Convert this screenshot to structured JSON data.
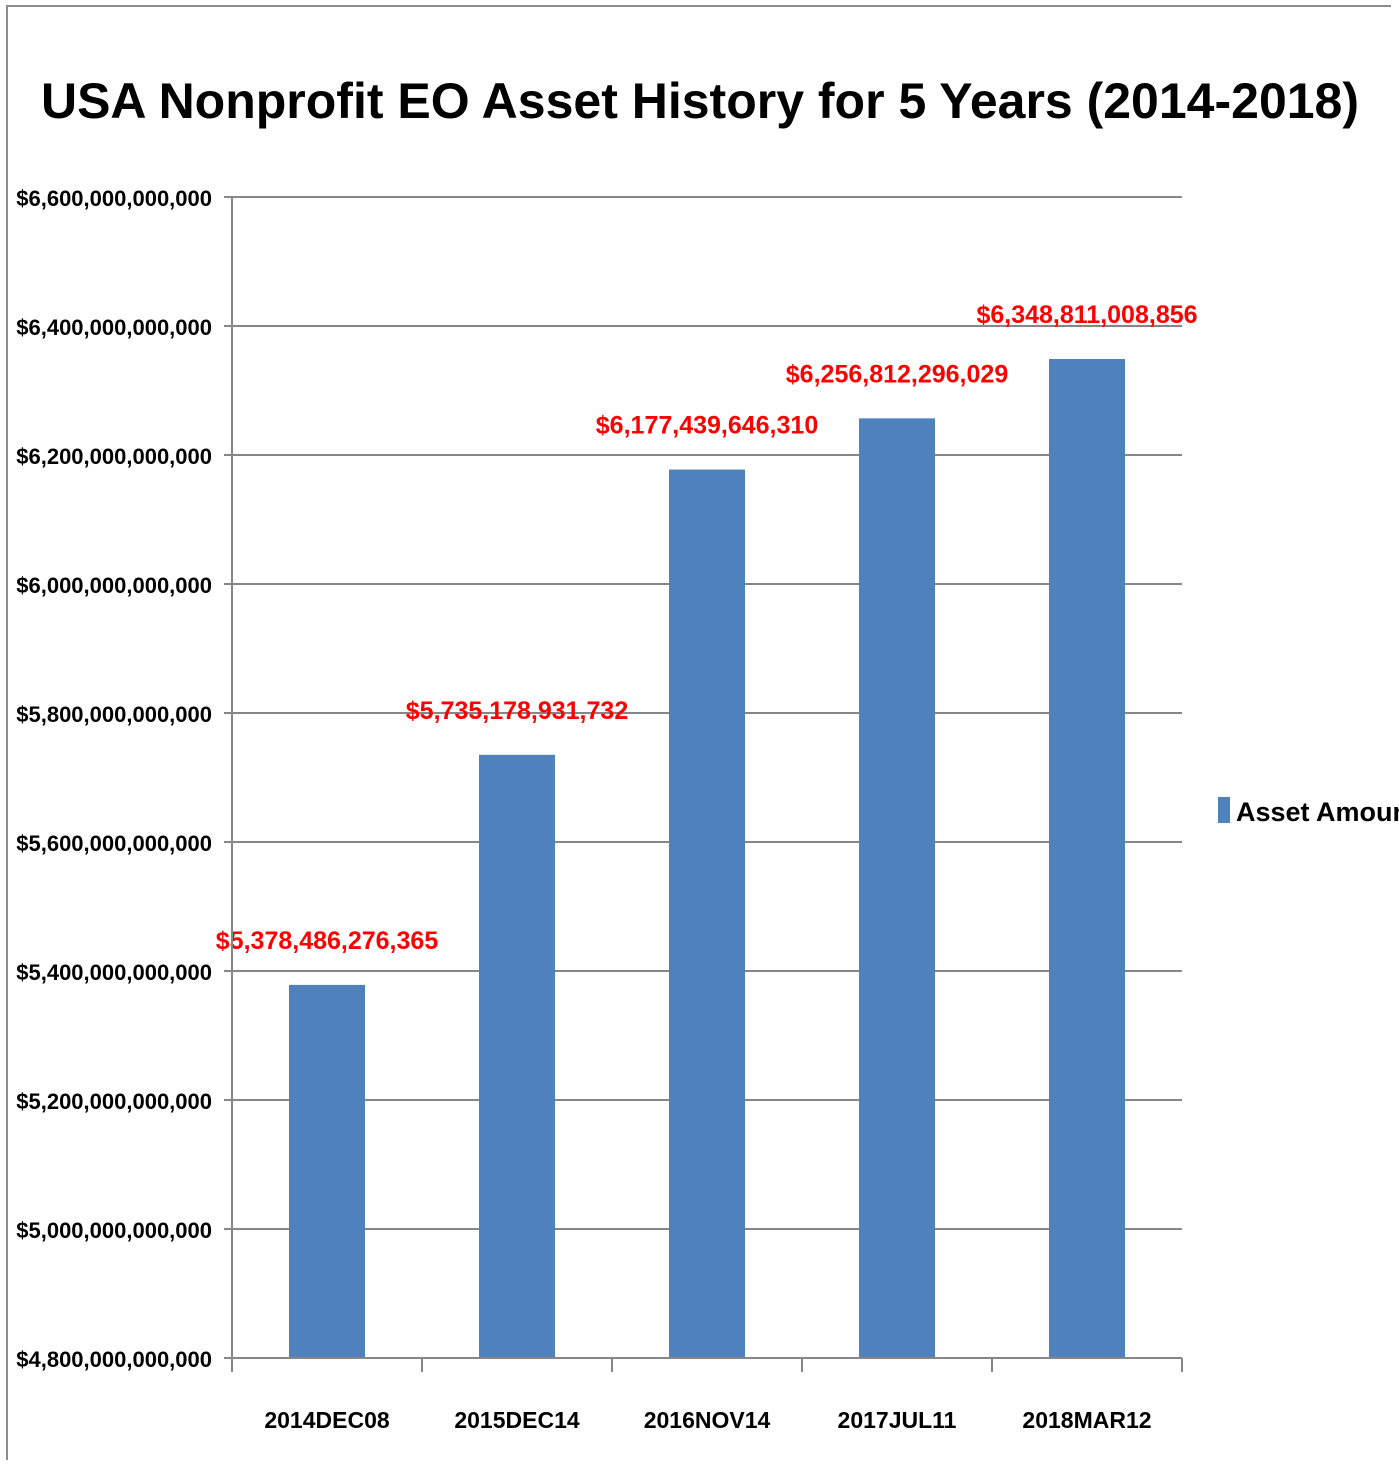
{
  "chart_data": {
    "type": "bar",
    "title": "USA Nonprofit EO Asset History for 5 Years (2014-2018)",
    "categories": [
      "2014DEC08",
      "2015DEC14",
      "2016NOV14",
      "2017JUL11",
      "2018MAR12"
    ],
    "series": [
      {
        "name": "Asset Amount",
        "values": [
          5378486276365,
          5735178931732,
          6177439646310,
          6256812296029,
          6348811008856
        ],
        "labels": [
          "$5,378,486,276,365",
          "$5,735,178,931,732",
          "$6,177,439,646,310",
          "$6,256,812,296,029",
          "$6,348,811,008,856"
        ]
      }
    ],
    "ylim": [
      4800000000000,
      6600000000000
    ],
    "yticks": [
      4800000000000,
      5000000000000,
      5200000000000,
      5400000000000,
      5600000000000,
      5800000000000,
      6000000000000,
      6200000000000,
      6400000000000,
      6600000000000
    ],
    "ytick_labels": [
      "$4,800,000,000,000",
      "$5,000,000,000,000",
      "$5,200,000,000,000",
      "$5,400,000,000,000",
      "$5,600,000,000,000",
      "$5,800,000,000,000",
      "$6,000,000,000,000",
      "$6,200,000,000,000",
      "$6,400,000,000,000",
      "$6,600,000,000,000"
    ],
    "grid": true,
    "legend_position": "right",
    "colors": {
      "bar": "#4f81bd",
      "data_label": "#ff0000",
      "grid": "#868686",
      "axis": "#868686"
    }
  }
}
